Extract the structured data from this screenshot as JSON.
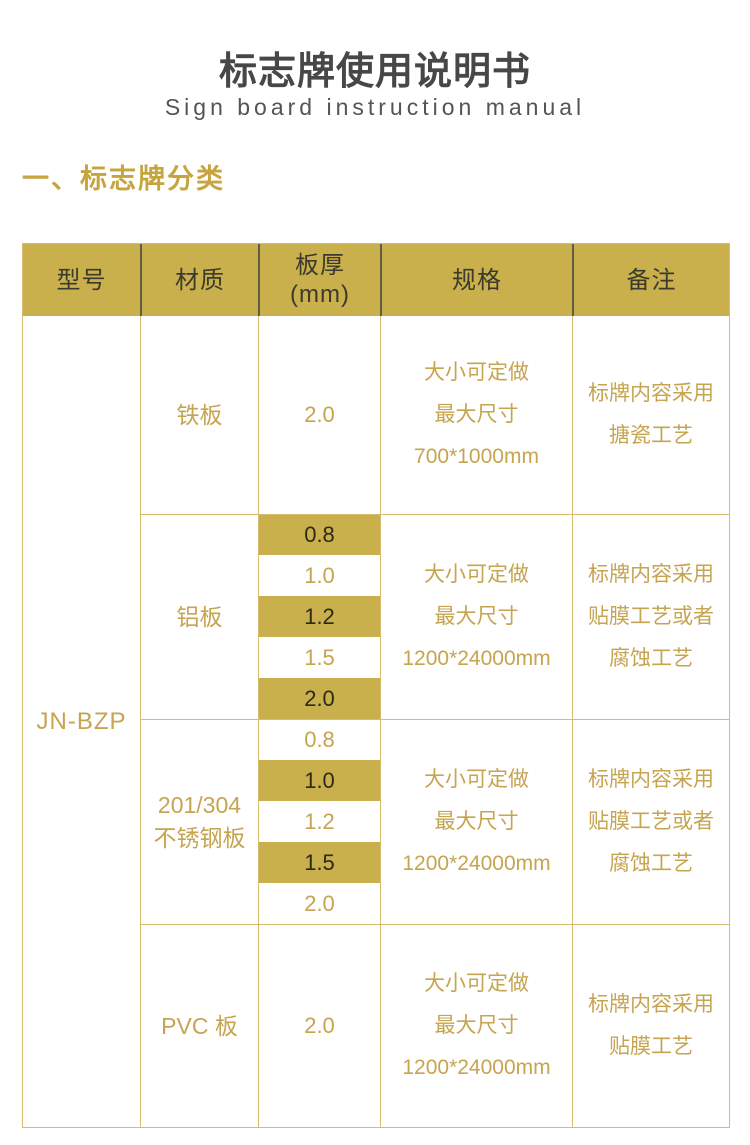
{
  "page": {
    "title": "标志牌使用说明书",
    "subtitle": "Sign board instruction manual",
    "section_heading": "一、标志牌分类"
  },
  "colors": {
    "gold_background": "#c9b04c",
    "gold_border": "#d7bc6d",
    "gold_text": "#c6a450",
    "header_separator": "#605d42",
    "dark_text_on_gold": "#2d2917",
    "title_text": "#474747",
    "heading_text": "#c6a43e"
  },
  "table": {
    "headers": [
      "型号",
      "材质",
      "板厚\n(mm)",
      "规格",
      "备注"
    ],
    "model": "JN-BZP",
    "sections": [
      {
        "material": "铁板",
        "thicknesses": [
          {
            "value": "2.0",
            "highlight": false
          }
        ],
        "spec_lines": [
          "大小可定做",
          "最大尺寸",
          "700*1000mm"
        ],
        "remark_lines": [
          "标牌内容采用",
          "搪瓷工艺"
        ]
      },
      {
        "material": "铝板",
        "thicknesses": [
          {
            "value": "0.8",
            "highlight": true
          },
          {
            "value": "1.0",
            "highlight": false
          },
          {
            "value": "1.2",
            "highlight": true
          },
          {
            "value": "1.5",
            "highlight": false
          },
          {
            "value": "2.0",
            "highlight": true
          }
        ],
        "spec_lines": [
          "大小可定做",
          "最大尺寸",
          "1200*24000mm"
        ],
        "remark_lines": [
          "标牌内容采用",
          "贴膜工艺或者",
          "腐蚀工艺"
        ]
      },
      {
        "material": "201/304\n不锈钢板",
        "thicknesses": [
          {
            "value": "0.8",
            "highlight": false
          },
          {
            "value": "1.0",
            "highlight": true
          },
          {
            "value": "1.2",
            "highlight": false
          },
          {
            "value": "1.5",
            "highlight": true
          },
          {
            "value": "2.0",
            "highlight": false
          }
        ],
        "spec_lines": [
          "大小可定做",
          "最大尺寸",
          "1200*24000mm"
        ],
        "remark_lines": [
          "标牌内容采用",
          "贴膜工艺或者",
          "腐蚀工艺"
        ]
      },
      {
        "material": "PVC 板",
        "thicknesses": [
          {
            "value": "2.0",
            "highlight": false
          }
        ],
        "spec_lines": [
          "大小可定做",
          "最大尺寸",
          "1200*24000mm"
        ],
        "remark_lines": [
          "标牌内容采用",
          "贴膜工艺"
        ]
      }
    ]
  }
}
